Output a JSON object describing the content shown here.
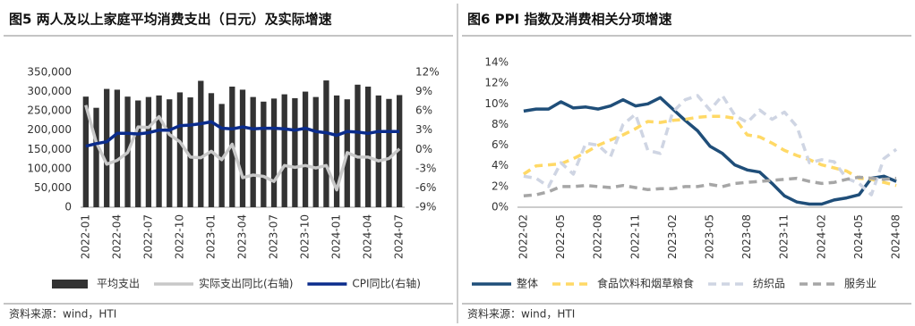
{
  "chart_data": [
    {
      "type": "combo",
      "title": "图5  两人及以上家庭平均消费支出（日元）及实际增速",
      "source": "资料来源：wind，HTI",
      "categories": [
        "2022-01",
        null,
        null,
        "2022-04",
        null,
        null,
        "2022-07",
        null,
        null,
        "2022-10",
        null,
        null,
        "2023-01",
        null,
        null,
        "2023-04",
        null,
        null,
        "2023-07",
        null,
        null,
        "2023-10",
        null,
        null,
        "2024-01",
        null,
        null,
        "2024-04",
        null,
        null,
        "2024-07"
      ],
      "ylim": [
        0,
        350000
      ],
      "yticks": [
        0,
        {
          "value": 50000,
          "label": "50,000"
        },
        {
          "value": 100000,
          "label": "100,000"
        },
        {
          "value": 150000,
          "label": "150,000"
        },
        {
          "value": 200000,
          "label": "200,000"
        },
        {
          "value": 250000,
          "label": "250,000"
        },
        {
          "value": 300000,
          "label": "300,000"
        },
        {
          "value": 350000,
          "label": "350,000"
        }
      ],
      "y2lim": [
        -9,
        12
      ],
      "y2ticks": [
        {
          "value": -9,
          "label": "-9%"
        },
        {
          "value": -6,
          "label": "-6%"
        },
        {
          "value": -3,
          "label": "-3%"
        },
        {
          "value": 0,
          "label": "0%"
        },
        {
          "value": 3,
          "label": "3%"
        },
        {
          "value": 6,
          "label": "6%"
        },
        {
          "value": 9,
          "label": "9%"
        },
        {
          "value": 12,
          "label": "12%"
        }
      ],
      "series": [
        {
          "name": "平均支出",
          "type": "bar",
          "color": "#333333",
          "values": [
            287000,
            258000,
            307000,
            305000,
            287000,
            277000,
            286000,
            290000,
            280000,
            298000,
            285000,
            328000,
            296000,
            268000,
            313000,
            305000,
            286000,
            274000,
            282000,
            293000,
            283000,
            300000,
            286000,
            329000,
            290000,
            280000,
            318000,
            313000,
            290000,
            281000,
            291000
          ]
        },
        {
          "name": "实际支出同比(右轴)",
          "type": "line",
          "axis": "y2",
          "color": "#c8c8c8",
          "values": [
            6.9,
            1.1,
            -2.3,
            -1.7,
            -0.5,
            3.5,
            3.4,
            5.1,
            2.3,
            1.2,
            -1.2,
            -1.3,
            -0.3,
            -1.6,
            0.8,
            -4.4,
            -4.0,
            -4.2,
            -5.0,
            -2.5,
            -2.8,
            -2.5,
            -2.9,
            -2.5,
            -6.3,
            -0.5,
            -1.2,
            -1.2,
            -1.8,
            -1.4,
            0.1
          ]
        },
        {
          "name": "CPI同比(右轴)",
          "type": "line",
          "axis": "y2",
          "color": "#0b2c8c",
          "values": [
            0.5,
            0.9,
            1.2,
            2.5,
            2.5,
            2.4,
            2.6,
            3.0,
            3.0,
            3.7,
            3.8,
            4.0,
            4.3,
            3.3,
            3.2,
            3.5,
            3.2,
            3.3,
            3.3,
            3.2,
            3.0,
            3.3,
            2.8,
            2.6,
            2.2,
            2.8,
            2.7,
            2.5,
            2.8,
            2.8,
            2.8
          ]
        }
      ]
    },
    {
      "type": "line",
      "title": "图6  PPI 指数及消费相关分项增速",
      "source": "资料来源：wind，HTI",
      "categories": [
        "2022-02",
        null,
        null,
        "2022-05",
        null,
        null,
        "2022-08",
        null,
        null,
        "2022-11",
        null,
        null,
        "2023-02",
        null,
        null,
        "2023-05",
        null,
        null,
        "2023-08",
        null,
        null,
        "2023-11",
        null,
        null,
        "2024-02",
        null,
        null,
        "2024-05",
        null,
        null,
        "2024-08"
      ],
      "ylim": [
        0,
        14
      ],
      "yticks": [
        {
          "value": 0,
          "label": "0%"
        },
        {
          "value": 2,
          "label": "2%"
        },
        {
          "value": 4,
          "label": "4%"
        },
        {
          "value": 6,
          "label": "6%"
        },
        {
          "value": 8,
          "label": "8%"
        },
        {
          "value": 10,
          "label": "10%"
        },
        {
          "value": 12,
          "label": "12%"
        },
        {
          "value": 14,
          "label": "14%"
        }
      ],
      "series": [
        {
          "name": "整体",
          "color": "#1f4e79",
          "dashed": false,
          "values": [
            9.3,
            9.5,
            9.5,
            10.2,
            9.6,
            9.7,
            9.5,
            9.8,
            10.4,
            9.8,
            10.0,
            10.6,
            9.5,
            8.4,
            7.4,
            5.9,
            5.2,
            4.1,
            3.6,
            3.4,
            2.3,
            1.1,
            0.5,
            0.3,
            0.3,
            0.7,
            0.9,
            1.2,
            2.8,
            3.0,
            2.5
          ]
        },
        {
          "name": "食品饮料和烟草粮食",
          "color": "#ffd966",
          "dashed": true,
          "values": [
            3.2,
            4.0,
            4.1,
            4.2,
            4.7,
            5.3,
            6.0,
            6.5,
            7.0,
            7.6,
            8.3,
            8.2,
            8.4,
            8.5,
            8.7,
            8.8,
            8.8,
            8.6,
            7.0,
            6.8,
            6.2,
            5.5,
            5.0,
            4.6,
            4.1,
            3.8,
            3.5,
            2.8,
            2.7,
            2.4,
            2.1
          ]
        },
        {
          "name": "纺织品",
          "color": "#cfd5e3",
          "dashed": true,
          "values": [
            3.0,
            2.8,
            2.0,
            4.3,
            3.2,
            6.2,
            6.0,
            4.9,
            8.0,
            9.0,
            5.5,
            5.2,
            9.2,
            10.4,
            10.8,
            9.4,
            10.8,
            8.9,
            8.2,
            9.4,
            8.5,
            9.2,
            7.8,
            4.3,
            4.6,
            4.4,
            2.8,
            2.3,
            1.2,
            4.7,
            5.6
          ]
        },
        {
          "name": "服务业",
          "color": "#a6a6a6",
          "dashed": true,
          "values": [
            1.1,
            1.2,
            1.5,
            2.0,
            2.0,
            2.1,
            2.0,
            1.9,
            2.1,
            1.9,
            1.7,
            1.8,
            1.8,
            2.0,
            2.0,
            2.2,
            2.0,
            2.3,
            2.4,
            2.5,
            2.6,
            2.7,
            2.8,
            2.5,
            2.3,
            2.4,
            2.7,
            2.9,
            2.8,
            2.7,
            2.8
          ]
        }
      ]
    }
  ]
}
